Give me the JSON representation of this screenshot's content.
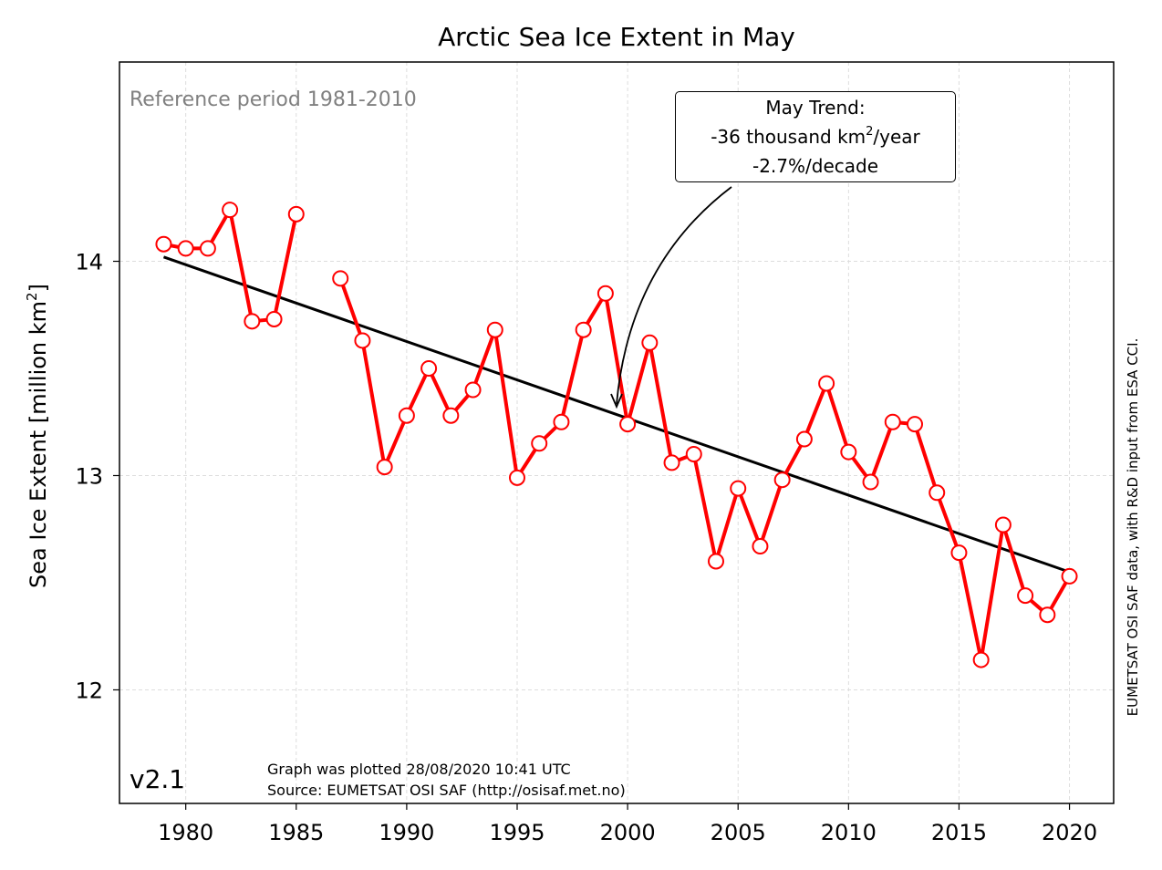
{
  "chart_data": {
    "type": "line",
    "title": "Arctic Sea Ice Extent in May",
    "ylabel_text": "Sea Ice Extent [million km",
    "ylabel_sup": "2",
    "ylabel_close": "]",
    "xlim": [
      1977.0,
      2022.0
    ],
    "ylim": [
      11.47,
      14.93
    ],
    "xticks": [
      1980,
      1985,
      1990,
      1995,
      2000,
      2005,
      2010,
      2015,
      2020
    ],
    "yticks": [
      12,
      13,
      14
    ],
    "grid": true,
    "series": [
      {
        "color": "#ff0000",
        "x": [
          1979,
          1980,
          1981,
          1982,
          1983,
          1984,
          1985,
          null,
          1987,
          1988,
          1989,
          1990,
          1991,
          1992,
          1993,
          1994,
          1995,
          1996,
          1997,
          1998,
          1999,
          2000,
          2001,
          2002,
          2003,
          2004,
          2005,
          2006,
          2007,
          2008,
          2009,
          2010,
          2011,
          2012,
          2013,
          2014,
          2015,
          2016,
          2017,
          2018,
          2019,
          2020
        ],
        "y": [
          14.08,
          14.06,
          14.06,
          14.24,
          13.72,
          13.73,
          14.22,
          null,
          13.92,
          13.63,
          13.04,
          13.28,
          13.5,
          13.28,
          13.4,
          13.68,
          12.99,
          13.15,
          13.25,
          13.68,
          13.85,
          13.24,
          13.62,
          13.06,
          13.1,
          12.6,
          12.94,
          12.67,
          12.98,
          13.17,
          13.43,
          13.11,
          12.97,
          13.25,
          13.24,
          12.92,
          12.64,
          12.14,
          12.77,
          12.44,
          12.35,
          12.53
        ]
      }
    ],
    "trend": {
      "color": "#000000",
      "x": [
        1979,
        2020
      ],
      "y": [
        14.02,
        12.55
      ]
    },
    "reference_text": "Reference period 1981-2010",
    "annotation": {
      "line1": "May Trend:",
      "line2_pre": "-36 thousand km",
      "line2_sup": "2",
      "line2_post": "/year",
      "line3": "-2.7%/decade"
    },
    "version": "v2.1",
    "footer_line1": "Graph was plotted 28/08/2020 10:41 UTC",
    "footer_line2": "Source: EUMETSAT OSI SAF (http://osisaf.met.no)",
    "side_credit": "EUMETSAT OSI SAF data, with R&D input from ESA CCI."
  }
}
